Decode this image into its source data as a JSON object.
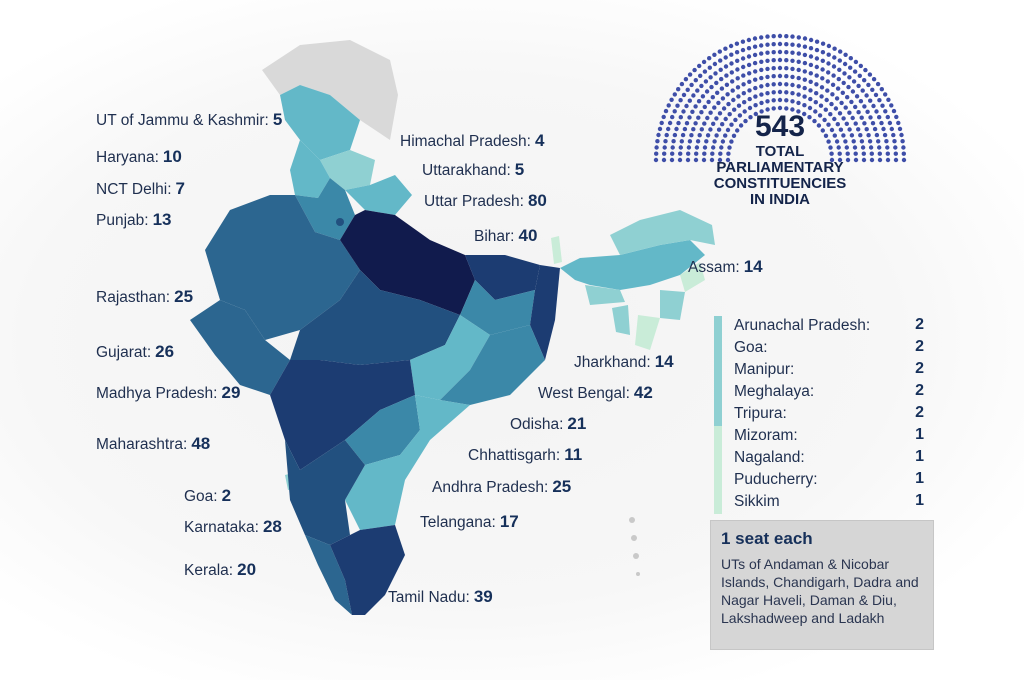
{
  "total": {
    "number": "543",
    "label": "TOTAL PARLIAMENTARY CONSTITUENCIES IN INDIA"
  },
  "map_labels": [
    {
      "name": "UT of Jammu & Kashmir:",
      "seats": "5"
    },
    {
      "name": "Himachal Pradesh:",
      "seats": "4"
    },
    {
      "name": "Haryana:",
      "seats": "10"
    },
    {
      "name": "Uttarakhand:",
      "seats": "5"
    },
    {
      "name": "NCT Delhi:",
      "seats": "7"
    },
    {
      "name": "Uttar Pradesh:",
      "seats": "80"
    },
    {
      "name": "Punjab:",
      "seats": "13"
    },
    {
      "name": "Bihar:",
      "seats": "40"
    },
    {
      "name": "Assam:",
      "seats": "14"
    },
    {
      "name": "Rajasthan:",
      "seats": "25"
    },
    {
      "name": "Gujarat:",
      "seats": "26"
    },
    {
      "name": "Jharkhand:",
      "seats": "14"
    },
    {
      "name": "Madhya Pradesh:",
      "seats": "29"
    },
    {
      "name": "West Bengal:",
      "seats": "42"
    },
    {
      "name": "Odisha:",
      "seats": "21"
    },
    {
      "name": "Maharashtra:",
      "seats": "48"
    },
    {
      "name": "Chhattisgarh:",
      "seats": "11"
    },
    {
      "name": "Goa:",
      "seats": "2"
    },
    {
      "name": "Andhra Pradesh:",
      "seats": "25"
    },
    {
      "name": "Karnataka:",
      "seats": "28"
    },
    {
      "name": "Telangana:",
      "seats": "17"
    },
    {
      "name": "Kerala:",
      "seats": "20"
    },
    {
      "name": "Tamil Nadu:",
      "seats": "39"
    }
  ],
  "small_states": [
    {
      "name": "Arunachal Pradesh:",
      "seats": "2"
    },
    {
      "name": "Goa:",
      "seats": "2"
    },
    {
      "name": "Manipur:",
      "seats": "2"
    },
    {
      "name": "Meghalaya:",
      "seats": "2"
    },
    {
      "name": "Tripura:",
      "seats": "2"
    },
    {
      "name": "Mizoram:",
      "seats": "1"
    },
    {
      "name": "Nagaland:",
      "seats": "1"
    },
    {
      "name": "Puducherry:",
      "seats": "1"
    },
    {
      "name": "Sikkim",
      "seats": "1"
    }
  ],
  "note": {
    "title": "1 seat each",
    "body": "UTs of Andaman & Nicobar Islands, Chandigarh, Dadra and Nagar Haveli, Daman & Diu, Lakshadweep and Ladakh"
  },
  "colors": {
    "darkest": "#111b4d",
    "dark": "#1c3c72",
    "mid_dark": "#22507f",
    "mid": "#2c6690",
    "mid_light": "#3b88a8",
    "light": "#63b8c8",
    "lighter": "#8fd0d2",
    "lightest": "#c9ecd8",
    "no_data": "#d9d9d9",
    "parliament_dots": "#3e4ea8"
  }
}
